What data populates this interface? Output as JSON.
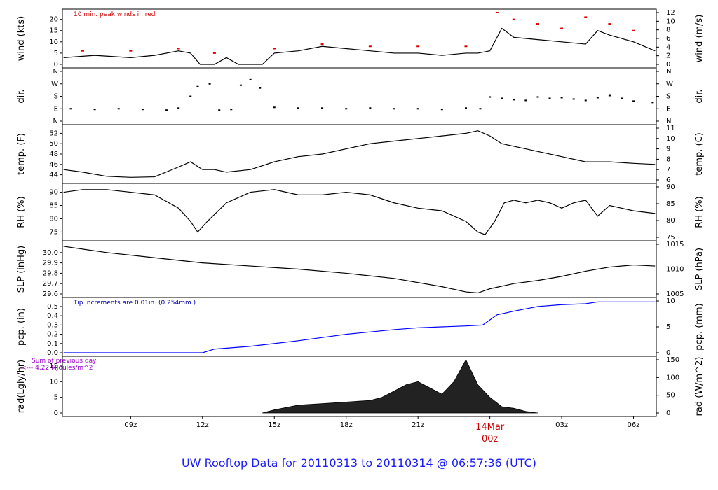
{
  "title": "UW Rooftop Data for 20110313  to  20110314 @ 06:57:36  (UTC)",
  "x_axis": {
    "ticks": [
      "09z",
      "12z",
      "15z",
      "18z",
      "21z",
      "03z",
      "06z"
    ],
    "day_marker": {
      "date_label": "14Mar",
      "time_label": "00z",
      "color": "#cc0000"
    },
    "range_hours_utc": [
      6.15,
      30.95
    ]
  },
  "chart_data": [
    {
      "type": "line",
      "left_label": "wind (kts)",
      "right_label": "wind (m/s)",
      "annotation": "10 min. peak winds in red",
      "ylim": [
        0,
        23
      ],
      "left_ticks": [
        "0",
        "5",
        "10",
        "15",
        "20"
      ],
      "right_ticks": [
        "0",
        "2",
        "4",
        "6",
        "8",
        "10",
        "12"
      ],
      "series": [
        {
          "color": "#000000",
          "x_hours": [
            6.2,
            7.5,
            9,
            10,
            11,
            11.5,
            11.9,
            12.5,
            13,
            13.5,
            14,
            14.5,
            15,
            16,
            17,
            18,
            19,
            20,
            21,
            22,
            23,
            23.5,
            24,
            24.5,
            25,
            26,
            27,
            28,
            28.5,
            29,
            30,
            30.9
          ],
          "y": [
            3,
            4,
            3,
            4,
            6,
            5,
            0,
            0,
            3,
            0,
            0,
            0,
            5,
            6,
            8,
            7,
            6,
            5,
            5,
            4,
            5,
            5,
            6,
            16,
            12,
            11,
            10,
            9,
            15,
            13,
            10,
            6
          ]
        },
        {
          "name": "10 min. peak winds",
          "color": "#dd0000",
          "x_hours": [
            7,
            9,
            11,
            12.5,
            15,
            17,
            19,
            21,
            23,
            24.3,
            25,
            26,
            27,
            28,
            29,
            30
          ],
          "y": [
            6,
            6,
            7,
            5,
            7,
            9,
            8,
            8,
            8,
            23,
            20,
            18,
            16,
            21,
            18,
            15
          ]
        }
      ]
    },
    {
      "type": "scatter",
      "left_label": "dir.",
      "right_label": "dir.",
      "left_ticks": [
        "N",
        "E",
        "S",
        "W",
        "N"
      ],
      "right_ticks": [
        "N",
        "E",
        "S",
        "W",
        "N"
      ],
      "ylim": [
        0,
        360
      ],
      "series": [
        {
          "color": "#000000",
          "x_hours": [
            6.5,
            7.5,
            8.5,
            9.5,
            10.5,
            11,
            11.5,
            11.8,
            12.3,
            12.7,
            13.2,
            13.6,
            14,
            14.4,
            15,
            16,
            17,
            18,
            19,
            20,
            21,
            22,
            23,
            23.6,
            24,
            24.5,
            25,
            25.5,
            26,
            26.5,
            27,
            27.5,
            28,
            28.5,
            29,
            29.5,
            30,
            30.8
          ],
          "y": [
            90,
            85,
            90,
            85,
            80,
            95,
            180,
            250,
            270,
            80,
            85,
            260,
            300,
            240,
            100,
            95,
            95,
            90,
            95,
            90,
            90,
            85,
            95,
            90,
            175,
            165,
            155,
            150,
            175,
            165,
            170,
            160,
            150,
            170,
            185,
            165,
            145,
            135
          ]
        }
      ]
    },
    {
      "type": "line",
      "left_label": "temp. (F)",
      "right_label": "temp. (C)",
      "ylim": [
        43,
        53
      ],
      "left_ticks": [
        "44",
        "46",
        "48",
        "50",
        "52"
      ],
      "right_ticks": [
        "6",
        "7",
        "8",
        "9",
        "10",
        "11"
      ],
      "series": [
        {
          "color": "#000000",
          "x_hours": [
            6.2,
            7,
            8,
            9,
            10,
            11,
            11.5,
            12,
            12.5,
            13,
            14,
            15,
            16,
            17,
            18,
            19,
            20,
            21,
            22,
            23,
            23.5,
            24,
            24.5,
            25,
            26,
            27,
            28,
            29,
            30,
            30.9
          ],
          "y": [
            45,
            44.5,
            43.7,
            43.5,
            43.6,
            45.5,
            46.5,
            45,
            45,
            44.5,
            45,
            46.5,
            47.5,
            48,
            49,
            50,
            50.5,
            51,
            51.5,
            52,
            52.5,
            51.5,
            50,
            49.5,
            48.5,
            47.5,
            46.5,
            46.5,
            46.2,
            46
          ]
        }
      ]
    },
    {
      "type": "line",
      "left_label": "RH (%)",
      "right_label": "RH (%)",
      "ylim": [
        73,
        92
      ],
      "left_ticks": [
        "75",
        "80",
        "85",
        "90"
      ],
      "right_ticks": [
        "75",
        "80",
        "85",
        "90"
      ],
      "series": [
        {
          "color": "#000000",
          "x_hours": [
            6.2,
            7,
            8,
            9,
            10,
            11,
            11.5,
            11.8,
            12.2,
            13,
            14,
            15,
            16,
            17,
            18,
            19,
            20,
            21,
            22,
            23,
            23.5,
            23.8,
            24.2,
            24.6,
            25,
            25.5,
            26,
            26.5,
            27,
            27.5,
            28,
            28.5,
            29,
            29.5,
            30,
            30.9
          ],
          "y": [
            90,
            91,
            91,
            90,
            89,
            84,
            79,
            75,
            79,
            86,
            90,
            91,
            89,
            89,
            90,
            89,
            86,
            84,
            83,
            79,
            75,
            74,
            79,
            86,
            87,
            86,
            87,
            86,
            84,
            86,
            87,
            81,
            85,
            84,
            83,
            82
          ]
        }
      ]
    },
    {
      "type": "line",
      "left_label": "SLP (inHg)",
      "right_label": "SLP (hPa)",
      "ylim": [
        29.6,
        30.08
      ],
      "left_ticks": [
        "29.6",
        "29.7",
        "29.8",
        "29.9",
        "30.0"
      ],
      "right_ticks": [
        "1005",
        "1010",
        "1015"
      ],
      "series": [
        {
          "color": "#000000",
          "x_hours": [
            6.2,
            8,
            10,
            12,
            14,
            16,
            18,
            20,
            22,
            23,
            23.5,
            24,
            25,
            26,
            27,
            28,
            29,
            30,
            30.9
          ],
          "y": [
            30.06,
            30.0,
            29.95,
            29.9,
            29.87,
            29.84,
            29.8,
            29.75,
            29.67,
            29.62,
            29.61,
            29.65,
            29.7,
            29.73,
            29.77,
            29.82,
            29.86,
            29.88,
            29.87
          ]
        }
      ]
    },
    {
      "type": "line",
      "left_label": "pcp. (in)",
      "right_label": "pcp. (mm)",
      "annotation": "Tip increments are 0.01in. (0.254mm.)",
      "ylim": [
        0,
        0.56
      ],
      "left_ticks": [
        "0.0",
        "0.1",
        "0.2",
        "0.3",
        "0.4",
        "0.5"
      ],
      "right_ticks": [
        "0",
        "5",
        "10"
      ],
      "series": [
        {
          "color": "#0000ff",
          "x_hours": [
            6.2,
            9,
            12,
            12.5,
            14,
            16,
            18,
            20,
            21,
            23,
            23.7,
            24.3,
            25,
            26,
            27,
            28,
            28.5,
            30.9
          ],
          "y": [
            0,
            0,
            0,
            0.04,
            0.07,
            0.13,
            0.2,
            0.25,
            0.27,
            0.29,
            0.3,
            0.41,
            0.45,
            0.5,
            0.52,
            0.53,
            0.55,
            0.55
          ]
        }
      ]
    },
    {
      "type": "area",
      "left_label": "rad(Lgly/hr)",
      "right_label": "rad (W/m^2)",
      "annotation_lines": [
        "Sum of previous day",
        "<--- 4.22 MJoules/m^2"
      ],
      "ylim": [
        0,
        17
      ],
      "left_ticks": [
        "0",
        "5",
        "10",
        "15"
      ],
      "right_ticks": [
        "0",
        "50",
        "100",
        "150"
      ],
      "series": [
        {
          "color": "#000000",
          "x_hours": [
            14.5,
            15,
            16,
            17,
            18,
            19,
            19.5,
            20,
            20.5,
            21,
            21.5,
            22,
            22.5,
            23,
            23.5,
            24,
            24.5,
            25,
            25.5,
            26
          ],
          "y": [
            0,
            1,
            2.5,
            3,
            3.5,
            4,
            5,
            7,
            9,
            10,
            8,
            6,
            10,
            17,
            9,
            5,
            2,
            1.5,
            0.5,
            0
          ]
        }
      ]
    }
  ]
}
